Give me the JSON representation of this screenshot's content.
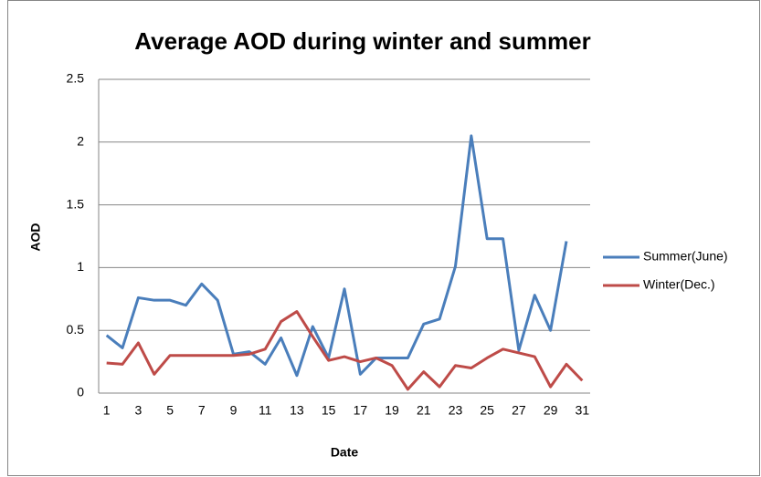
{
  "chart_data": {
    "type": "line",
    "title": "Average AOD during winter and summer",
    "x_label": "Date",
    "y_label": "AOD",
    "categories": [
      "1",
      null,
      "3",
      null,
      "5",
      null,
      "7",
      null,
      "9",
      null,
      "11",
      null,
      "13",
      null,
      "15",
      null,
      "17",
      null,
      "19",
      null,
      "21",
      null,
      "23",
      null,
      "25",
      null,
      "27",
      null,
      "29",
      null,
      "31"
    ],
    "series": [
      {
        "name": "Summer(June)",
        "color": "#4a7ebb",
        "values": [
          0.46,
          0.36,
          0.76,
          0.74,
          0.74,
          0.7,
          0.87,
          0.74,
          0.31,
          0.33,
          0.23,
          0.44,
          0.14,
          0.53,
          0.28,
          0.83,
          0.15,
          0.28,
          0.28,
          0.28,
          0.55,
          0.59,
          1.01,
          2.05,
          1.23,
          1.23,
          0.34,
          0.78,
          0.5,
          1.21,
          null
        ]
      },
      {
        "name": "Winter(Dec.)",
        "color": "#be4b48",
        "values": [
          0.24,
          0.23,
          0.4,
          0.15,
          0.3,
          0.3,
          0.3,
          0.3,
          0.3,
          0.31,
          0.35,
          0.57,
          0.65,
          0.45,
          0.26,
          0.29,
          0.25,
          0.28,
          0.22,
          0.03,
          0.17,
          0.05,
          0.22,
          0.2,
          0.28,
          0.35,
          0.32,
          0.29,
          0.05,
          0.23,
          0.1
        ]
      }
    ],
    "ylim": [
      0,
      2.5
    ],
    "yticks": [
      0,
      0.5,
      1,
      1.5,
      2,
      2.5
    ],
    "grid": true,
    "legend": "right"
  }
}
